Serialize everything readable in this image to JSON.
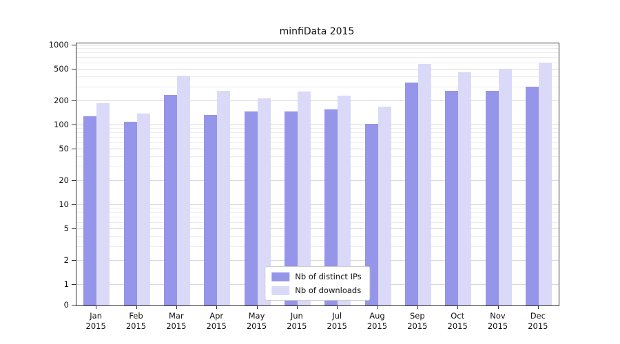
{
  "chart_data": {
    "type": "bar",
    "title": "minfiData 2015",
    "year": "2015",
    "categories": [
      "Jan",
      "Feb",
      "Mar",
      "Apr",
      "May",
      "Jun",
      "Jul",
      "Aug",
      "Sep",
      "Oct",
      "Nov",
      "Dec"
    ],
    "series": [
      {
        "name": "Nb of distinct IPs",
        "color": "#9595ea",
        "values": [
          130,
          110,
          240,
          135,
          150,
          148,
          158,
          105,
          340,
          270,
          270,
          305
        ]
      },
      {
        "name": "Nb of downloads",
        "color": "#dadaf8",
        "values": [
          190,
          140,
          420,
          270,
          215,
          265,
          235,
          170,
          580,
          460,
          500,
          610
        ]
      }
    ],
    "yscale": "symlog",
    "yticks": [
      0,
      1,
      2,
      5,
      10,
      20,
      50,
      100,
      200,
      500,
      1000
    ],
    "ylim": [
      0,
      1000
    ],
    "xlabel": "",
    "ylabel": "",
    "grid": "both-horizontal",
    "legend_position": "lower center"
  }
}
